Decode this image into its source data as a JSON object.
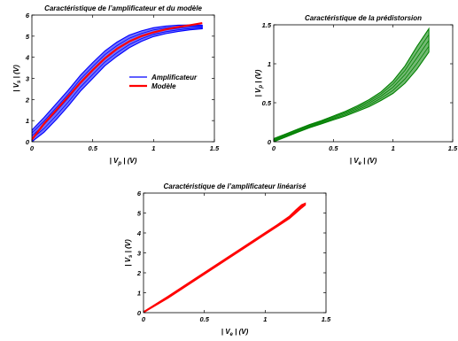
{
  "chart_data": [
    {
      "type": "line",
      "title": "Caractéristique de l’amplificateur et du modèle",
      "xlabel": {
        "pre": "| V",
        "sub": "p",
        "post": " | (V)"
      },
      "ylabel": {
        "pre": "| V",
        "sub": "s",
        "post": " | (V)"
      },
      "xlim": [
        0,
        1.5
      ],
      "ylim": [
        0,
        6
      ],
      "xticks": [
        "0",
        "0.5",
        "1",
        "1.5"
      ],
      "yticks": [
        "0",
        "1",
        "2",
        "3",
        "4",
        "5",
        "6"
      ],
      "grid": false,
      "legend": "center-right",
      "series": [
        {
          "name": "Amplificateur",
          "color": "#0000ff",
          "style": "band",
          "x": [
            0,
            0.1,
            0.2,
            0.3,
            0.4,
            0.5,
            0.6,
            0.7,
            0.8,
            0.9,
            1.0,
            1.1,
            1.2,
            1.3,
            1.4
          ],
          "upper": [
            0.55,
            1.15,
            1.8,
            2.45,
            3.15,
            3.75,
            4.3,
            4.72,
            5.05,
            5.25,
            5.4,
            5.48,
            5.52,
            5.53,
            5.52
          ],
          "lower": [
            0.0,
            0.45,
            1.05,
            1.7,
            2.4,
            3.0,
            3.6,
            4.05,
            4.45,
            4.75,
            4.98,
            5.12,
            5.22,
            5.3,
            5.35
          ]
        },
        {
          "name": "Modèle",
          "color": "#ff0000",
          "style": "line",
          "x": [
            0,
            0.1,
            0.2,
            0.3,
            0.4,
            0.5,
            0.6,
            0.7,
            0.8,
            0.9,
            1.0,
            1.1,
            1.2,
            1.3,
            1.4
          ],
          "y": [
            0.1,
            0.85,
            1.5,
            2.15,
            2.8,
            3.4,
            3.95,
            4.4,
            4.75,
            5.0,
            5.18,
            5.32,
            5.43,
            5.52,
            5.62
          ]
        }
      ]
    },
    {
      "type": "line",
      "title": "Caractéristique de la prédistorsion",
      "xlabel": {
        "pre": "| V",
        "sub": "e",
        "post": " | (V)"
      },
      "ylabel": {
        "pre": "| V",
        "sub": "p",
        "post": " | (V)"
      },
      "xlim": [
        0,
        1.5
      ],
      "ylim": [
        0,
        1.5
      ],
      "xticks": [
        "0",
        "0.5",
        "1",
        "1.5"
      ],
      "yticks": [
        "0",
        "0.5",
        "1",
        "1.5"
      ],
      "grid": false,
      "series": [
        {
          "color": "#008000",
          "style": "band",
          "x": [
            0,
            0.1,
            0.2,
            0.3,
            0.4,
            0.5,
            0.6,
            0.7,
            0.8,
            0.9,
            1.0,
            1.1,
            1.2,
            1.3
          ],
          "upper": [
            0.04,
            0.1,
            0.16,
            0.22,
            0.27,
            0.33,
            0.39,
            0.46,
            0.54,
            0.64,
            0.78,
            0.97,
            1.22,
            1.45
          ],
          "lower": [
            0.0,
            0.06,
            0.12,
            0.18,
            0.23,
            0.28,
            0.33,
            0.39,
            0.45,
            0.53,
            0.62,
            0.75,
            0.93,
            1.15
          ]
        }
      ]
    },
    {
      "type": "line",
      "title": "Caractéristique de l’amplificateur linéarisé",
      "xlabel": {
        "pre": "| V",
        "sub": "e",
        "post": " | (V)"
      },
      "ylabel": {
        "pre": "| V",
        "sub": "s",
        "post": " | (V)"
      },
      "xlim": [
        0,
        1.5
      ],
      "ylim": [
        0,
        6
      ],
      "xticks": [
        "0",
        "0.5",
        "1",
        "1.5"
      ],
      "yticks": [
        "0",
        "1",
        "2",
        "3",
        "4",
        "5",
        "6"
      ],
      "grid": false,
      "series": [
        {
          "color": "#ff0000",
          "style": "band",
          "x": [
            0,
            0.2,
            0.4,
            0.6,
            0.8,
            1.0,
            1.1,
            1.2,
            1.25,
            1.3,
            1.33
          ],
          "upper": [
            0.05,
            0.82,
            1.62,
            2.42,
            3.22,
            4.02,
            4.42,
            4.85,
            5.15,
            5.42,
            5.5
          ],
          "lower": [
            0.0,
            0.72,
            1.52,
            2.32,
            3.12,
            3.92,
            4.32,
            4.72,
            4.98,
            5.25,
            5.4
          ]
        }
      ]
    }
  ]
}
